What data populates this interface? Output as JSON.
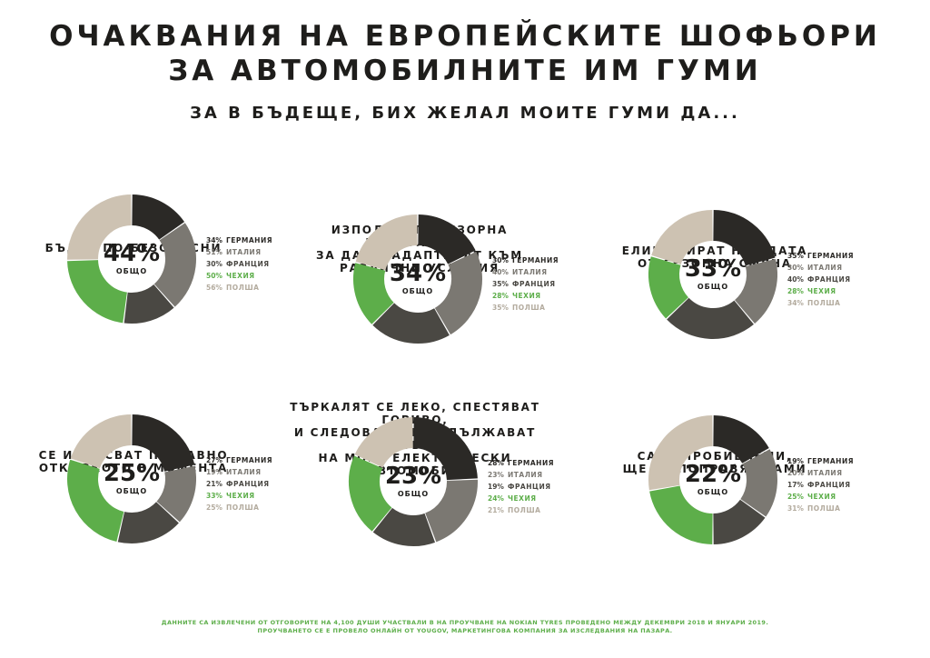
{
  "header": {
    "title_line1": "ОЧАКВАНИЯ НА ЕВРОПЕЙСКИТЕ ШОФЬОРИ",
    "title_line2": "ЗА АВТОМОБИЛНИТЕ ИМ ГУМИ",
    "subtitle": "ЗА В БЪДЕЩЕ, БИХ ЖЕЛАЛ МОИТЕ ГУМИ ДА..."
  },
  "colors": {
    "germany": "#2b2926",
    "italy": "#7b7872",
    "france": "#4a4843",
    "czechia": "#5dae4a",
    "poland": "#cdc2b2",
    "legend_gray": "#b3ab9e"
  },
  "center_label": "ОБЩО",
  "chart_data": [
    {
      "type": "pie",
      "title_lines": [
        "БЪДАТ ПО-БЕЗОПАСНИ"
      ],
      "total": "44%",
      "series": [
        {
          "name": "ГЕРМАНИЯ",
          "label": "34%",
          "value": 34
        },
        {
          "name": "ИТАЛИЯ",
          "label": "51%",
          "value": 51
        },
        {
          "name": "ФРАНЦИЯ",
          "label": "30%",
          "value": 30
        },
        {
          "name": "ЧЕХИЯ",
          "label": "50%",
          "value": 50
        },
        {
          "name": "ПОЛША",
          "label": "56%",
          "value": 56
        }
      ]
    },
    {
      "type": "pie",
      "title_lines": [
        "ИЗПОЛЗВАТ СЕНЗОРНА ТЕХНОЛОГИЯ,",
        "ЗА ДА СЕ АДАПТИРАТ КЪМ",
        "РАЗЛИЧНИ УСЛОВИЯ"
      ],
      "total": "34%",
      "series": [
        {
          "name": "ГЕРМАНИЯ",
          "label": "30%",
          "value": 30
        },
        {
          "name": "ИТАЛИЯ",
          "label": "40%",
          "value": 40
        },
        {
          "name": "ФРАНЦИЯ",
          "label": "35%",
          "value": 35
        },
        {
          "name": "ЧЕХИЯ",
          "label": "28%",
          "value": 28
        },
        {
          "name": "ПОЛША",
          "label": "35%",
          "value": 35
        }
      ]
    },
    {
      "type": "pie",
      "title_lines": [
        "ЕЛИМИНИРАТ НУЖДАТА",
        "ОТ СЕЗОННА СМЯНА"
      ],
      "total": "33%",
      "series": [
        {
          "name": "ГЕРМАНИЯ",
          "label": "35%",
          "value": 35
        },
        {
          "name": "ИТАЛИЯ",
          "label": "30%",
          "value": 30
        },
        {
          "name": "ФРАНЦИЯ",
          "label": "40%",
          "value": 40
        },
        {
          "name": "ЧЕХИЯ",
          "label": "28%",
          "value": 28
        },
        {
          "name": "ПОЛША",
          "label": "34%",
          "value": 34
        }
      ]
    },
    {
      "type": "pie",
      "title_lines": [
        "СЕ ИЗНОСВАТ ПО-БАВНО",
        "ОТКОЛКОТО В МОМЕНТА"
      ],
      "total": "25%",
      "series": [
        {
          "name": "ГЕРМАНИЯ",
          "label": "27%",
          "value": 27
        },
        {
          "name": "ИТАЛИЯ",
          "label": "19%",
          "value": 19
        },
        {
          "name": "ФРАНЦИЯ",
          "label": "21%",
          "value": 21
        },
        {
          "name": "ЧЕХИЯ",
          "label": "33%",
          "value": 33
        },
        {
          "name": "ПОЛША",
          "label": "25%",
          "value": 25
        }
      ]
    },
    {
      "type": "pie",
      "title_lines": [
        "ТЪРКАЛЯТ СЕ ЛЕКО, СПЕСТЯВАТ ГОРИВО,",
        "И СЛЕДОВАТЕЛНО УДЪЛЖАВАТ ПРОБЕГА",
        "НА МОЯТ ЕЛЕКТРИЧЕСКИ АВТОМОБИЛ"
      ],
      "total": "23%",
      "series": [
        {
          "name": "ГЕРМАНИЯ",
          "label": "28%",
          "value": 28
        },
        {
          "name": "ИТАЛИЯ",
          "label": "23%",
          "value": 23
        },
        {
          "name": "ФРАНЦИЯ",
          "label": "19%",
          "value": 19
        },
        {
          "name": "ЧЕХИЯ",
          "label": "24%",
          "value": 24
        },
        {
          "name": "ПОЛША",
          "label": "21%",
          "value": 21
        }
      ]
    },
    {
      "type": "pie",
      "title_lines": [
        "СА НЕПРОБИВАЕМИ,",
        "ЩЕ СЕ ПОПРАВЯТ САМИ"
      ],
      "total": "22%",
      "series": [
        {
          "name": "ГЕРМАНИЯ",
          "label": "19%",
          "value": 19
        },
        {
          "name": "ИТАЛИЯ",
          "label": "20%",
          "value": 20
        },
        {
          "name": "ФРАНЦИЯ",
          "label": "17%",
          "value": 17
        },
        {
          "name": "ЧЕХИЯ",
          "label": "25%",
          "value": 25
        },
        {
          "name": "ПОЛША",
          "label": "31%",
          "value": 31
        }
      ]
    }
  ],
  "footer": {
    "line1": "ДАННИТЕ СА ИЗВЛЕЧЕНИ ОТ ОТГОВОРИТЕ НА 4,100 ДУШИ УЧАСТВАЛИ В НА ПРОУЧВАНЕ НА NOKIAN TYRES ПРОВЕДЕНО МЕЖДУ ДЕКЕМВРИ 2018 И ЯНУАРИ 2019.",
    "line2": "ПРОУЧВАНЕТО СЕ Е ПРОВЕЛО ОНЛАЙН ОТ YOUGOV, МАРКЕТИНГОВА КОМПАНИЯ ЗА ИЗСЛЕДВАНИЯ НА ПАЗАРА."
  }
}
